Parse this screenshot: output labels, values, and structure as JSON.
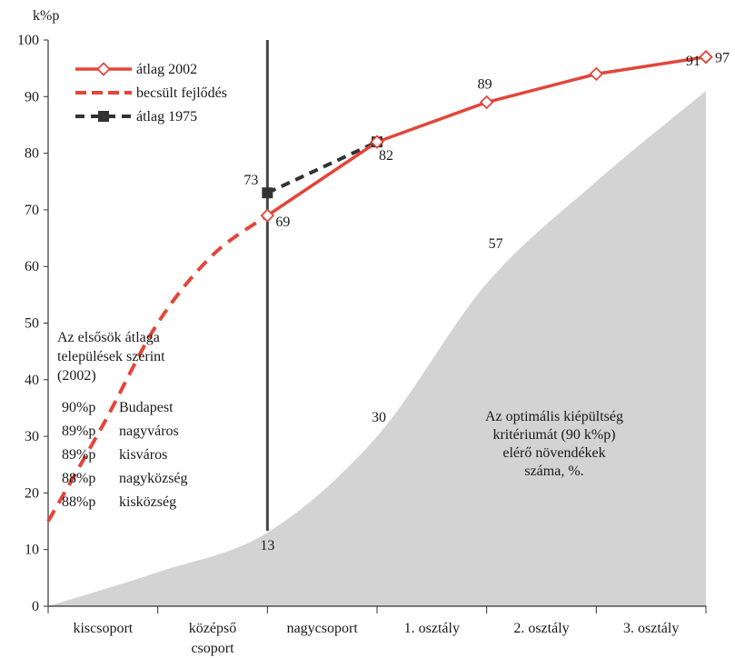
{
  "chart_data": {
    "type": "line",
    "ylabel": "k%p",
    "ylim": [
      0,
      100
    ],
    "yticks": [
      0,
      10,
      20,
      30,
      40,
      50,
      60,
      70,
      80,
      90,
      100
    ],
    "categories": [
      "kiscsoport",
      "középső csoport",
      "nagycsoport",
      "1. osztály",
      "2. osztály",
      "3. osztály"
    ],
    "colors": {
      "red": "#e2463a",
      "dark": "#333333",
      "area": "#d3d3d3"
    },
    "series": [
      {
        "name": "átlag 2002",
        "style": "solid-diamond",
        "x": [
          2,
          3,
          4,
          5,
          6
        ],
        "y": [
          69,
          82,
          89,
          94,
          97
        ],
        "labels": [
          "69",
          "82",
          "89",
          "",
          "97"
        ]
      },
      {
        "name": "becsült fejlődés",
        "style": "dashed",
        "x": [
          0,
          0.5,
          1,
          1.5,
          2
        ],
        "y": [
          15,
          32,
          50,
          62,
          69
        ]
      },
      {
        "name": "átlag 1975",
        "style": "dashed-square",
        "x": [
          2,
          3
        ],
        "y": [
          73,
          82
        ],
        "labels": [
          "73",
          ""
        ]
      },
      {
        "name": "Az optimális kiépültség kritériumát (90 k%p) elérő növendékek száma, %.",
        "style": "area",
        "x": [
          0,
          1,
          2,
          3,
          4,
          5,
          6
        ],
        "y": [
          0,
          6,
          13,
          30,
          57,
          75,
          91
        ],
        "labels": [
          "",
          "",
          "13",
          "30",
          "57",
          "",
          "91"
        ]
      }
    ],
    "vertical_line_at": 2,
    "legend_position": "top-left",
    "area_caption": [
      "Az optimális kiépültség",
      "kritériumát (90 k%p)",
      "elérő növendékek",
      "száma, %."
    ],
    "annotation": {
      "title": [
        "Az elsősök átlaga",
        "települések szerint",
        "(2002)"
      ],
      "rows": [
        {
          "value": "90%p",
          "place": "Budapest"
        },
        {
          "value": "89%p",
          "place": "nagyváros"
        },
        {
          "value": "89%p",
          "place": "kisváros"
        },
        {
          "value": "88%p",
          "place": "nagyközség"
        },
        {
          "value": "88%p",
          "place": "kisközség"
        }
      ]
    }
  }
}
